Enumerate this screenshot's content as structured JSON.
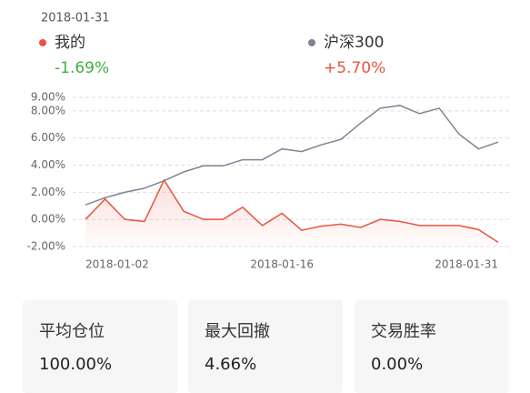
{
  "chart_data": {
    "type": "line",
    "header_date": "2018-01-31",
    "categories": [
      "2018-01-02",
      null,
      null,
      null,
      null,
      null,
      null,
      null,
      null,
      null,
      "2018-01-16",
      null,
      null,
      null,
      null,
      null,
      null,
      null,
      null,
      null,
      null,
      "2018-01-31"
    ],
    "series": [
      {
        "name": "我的",
        "color": "#e8553e",
        "return_label": "-1.69%",
        "return_color": "#3cb043",
        "area": true,
        "values": [
          0,
          1.5,
          0,
          -0.15,
          2.9,
          0.6,
          0,
          0,
          0.9,
          -0.45,
          0.45,
          -0.8,
          -0.5,
          -0.35,
          -0.6,
          0,
          -0.15,
          -0.45,
          -0.45,
          -0.45,
          -0.75,
          -1.69
        ]
      },
      {
        "name": "沪深300",
        "color": "#7f8394",
        "return_label": "+5.70%",
        "return_color": "#e8553e",
        "area": false,
        "values": [
          1.07,
          1.6,
          2.0,
          2.3,
          2.85,
          3.5,
          3.95,
          3.95,
          4.4,
          4.4,
          5.2,
          5.0,
          5.5,
          5.9,
          7.1,
          8.2,
          8.4,
          7.8,
          8.2,
          6.3,
          5.2,
          5.7
        ]
      }
    ],
    "ylim": [
      -2,
      9
    ],
    "yticks": [
      {
        "value": -2,
        "label": "-2.00%"
      },
      {
        "value": 0,
        "label": "0.00%"
      },
      {
        "value": 2,
        "label": "2.00%"
      },
      {
        "value": 4,
        "label": "4.00%"
      },
      {
        "value": 6,
        "label": "6.00%"
      },
      {
        "value": 8,
        "label": "8.00%"
      },
      {
        "value": 9,
        "label": "9.00%"
      }
    ],
    "grid": true
  },
  "stats": [
    {
      "label": "平均仓位",
      "value": "100.00%"
    },
    {
      "label": "最大回撤",
      "value": "4.66%"
    },
    {
      "label": "交易胜率",
      "value": "0.00%"
    }
  ]
}
